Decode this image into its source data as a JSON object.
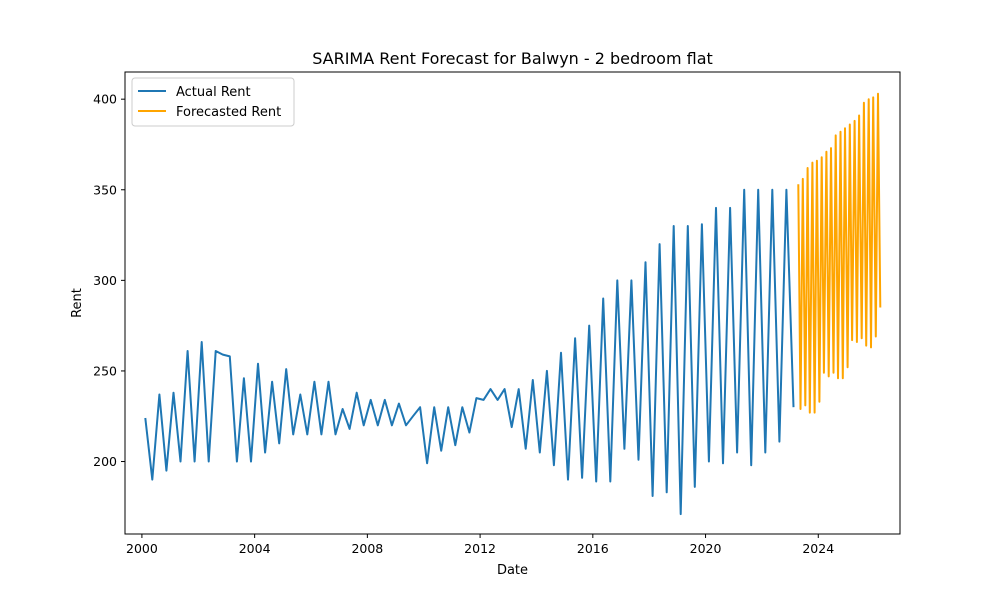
{
  "chart_data": {
    "type": "line",
    "title": "SARIMA Rent Forecast for Balwyn - 2 bedroom flat",
    "xlabel": "Date",
    "ylabel": "Rent",
    "xlim": [
      1999.4,
      2026.9
    ],
    "ylim": [
      160,
      415
    ],
    "xticks": [
      2000,
      2004,
      2008,
      2012,
      2016,
      2020,
      2024
    ],
    "xtick_labels": [
      "2000",
      "2004",
      "2008",
      "2012",
      "2016",
      "2020",
      "2024"
    ],
    "yticks": [
      200,
      250,
      300,
      350,
      400
    ],
    "ytick_labels": [
      "200",
      "250",
      "300",
      "350",
      "400"
    ],
    "grid": false,
    "legend": {
      "position": "upper-left"
    },
    "series": [
      {
        "name": "Actual Rent",
        "color": "#1f77b4",
        "x": [
          2000.12,
          2000.37,
          2000.62,
          2000.87,
          2001.12,
          2001.37,
          2001.62,
          2001.87,
          2002.12,
          2002.37,
          2002.62,
          2002.87,
          2003.12,
          2003.37,
          2003.62,
          2003.87,
          2004.12,
          2004.37,
          2004.62,
          2004.87,
          2005.12,
          2005.37,
          2005.62,
          2005.87,
          2006.12,
          2006.37,
          2006.62,
          2006.87,
          2007.12,
          2007.37,
          2007.62,
          2007.87,
          2008.12,
          2008.37,
          2008.62,
          2008.87,
          2009.12,
          2009.37,
          2009.62,
          2009.87,
          2010.12,
          2010.37,
          2010.62,
          2010.87,
          2011.12,
          2011.37,
          2011.62,
          2011.87,
          2012.12,
          2012.37,
          2012.62,
          2012.87,
          2013.12,
          2013.37,
          2013.62,
          2013.87,
          2014.12,
          2014.37,
          2014.62,
          2014.87,
          2015.12,
          2015.37,
          2015.62,
          2015.87,
          2016.12,
          2016.37,
          2016.62,
          2016.87,
          2017.12,
          2017.37,
          2017.62,
          2017.87,
          2018.12,
          2018.37,
          2018.62,
          2018.87,
          2019.12,
          2019.37,
          2019.62,
          2019.87,
          2020.12,
          2020.37,
          2020.62,
          2020.87,
          2021.12,
          2021.37,
          2021.62,
          2021.87,
          2022.12,
          2022.37,
          2022.62,
          2022.87,
          2023.12
        ],
        "y": [
          224,
          190,
          237,
          195,
          238,
          200,
          261,
          200,
          266,
          200,
          261,
          259,
          258,
          200,
          246,
          200,
          254,
          205,
          244,
          210,
          251,
          215,
          237,
          215,
          244,
          215,
          244,
          215,
          229,
          218,
          238,
          220,
          234,
          220,
          234,
          220,
          232,
          220,
          225,
          230,
          199,
          230,
          206,
          230,
          209,
          230,
          216,
          235,
          234,
          240,
          234,
          240,
          219,
          240,
          207,
          245,
          205,
          250,
          198,
          260,
          190,
          268,
          191,
          275,
          189,
          290,
          189,
          300,
          207,
          300,
          201,
          310,
          181,
          320,
          183,
          330,
          171,
          330,
          186,
          331,
          200,
          340,
          199,
          340,
          205,
          350,
          198,
          350,
          205,
          350,
          211,
          350,
          230
        ]
      },
      {
        "name": "Forecasted Rent",
        "color": "#ffa500",
        "x": [
          2023.29,
          2023.37,
          2023.45,
          2023.54,
          2023.62,
          2023.7,
          2023.79,
          2023.87,
          2023.95,
          2024.04,
          2024.12,
          2024.2,
          2024.29,
          2024.37,
          2024.45,
          2024.54,
          2024.62,
          2024.7,
          2024.79,
          2024.87,
          2024.95,
          2025.04,
          2025.12,
          2025.2,
          2025.29,
          2025.37,
          2025.45,
          2025.54,
          2025.62,
          2025.7,
          2025.79,
          2025.87,
          2025.95,
          2026.04,
          2026.12,
          2026.2
        ],
        "y": [
          353,
          229,
          356,
          231,
          362,
          227,
          365,
          227,
          366,
          233,
          368,
          249,
          371,
          247,
          373,
          249,
          380,
          246,
          382,
          246,
          384,
          252,
          386,
          267,
          388,
          266,
          391,
          268,
          398,
          264,
          400,
          263,
          401,
          269,
          403,
          285
        ]
      }
    ]
  }
}
